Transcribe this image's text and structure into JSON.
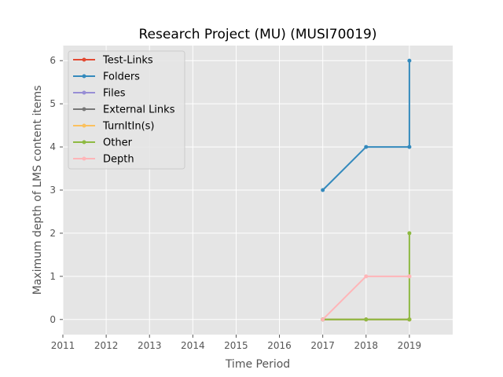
{
  "chart_data": {
    "type": "line",
    "title": "Research Project (MU) (MUSI70019)",
    "xlabel": "Time Period",
    "ylabel": "Maximum depth of LMS content items",
    "xlim": [
      2011,
      2020
    ],
    "ylim": [
      -0.35,
      6.35
    ],
    "xticks": [
      "2011",
      "2012",
      "2013",
      "2014",
      "2015",
      "2016",
      "2017",
      "2018",
      "2019"
    ],
    "yticks": [
      "0",
      "1",
      "2",
      "3",
      "4",
      "5",
      "6"
    ],
    "grid": true,
    "legend_position": "upper-left",
    "series": [
      {
        "name": "Test-Links",
        "color": "#e24a33",
        "x": [
          2017,
          2018,
          2019,
          2019
        ],
        "y": [
          0,
          0,
          0,
          0
        ]
      },
      {
        "name": "Folders",
        "color": "#348abd",
        "x": [
          2017,
          2018,
          2019,
          2019
        ],
        "y": [
          3,
          4,
          4,
          6
        ]
      },
      {
        "name": "Files",
        "color": "#988ed5",
        "x": [
          2017,
          2018,
          2019,
          2019
        ],
        "y": [
          0,
          0,
          0,
          0
        ]
      },
      {
        "name": "External Links",
        "color": "#777777",
        "x": [
          2017,
          2018,
          2019,
          2019
        ],
        "y": [
          0,
          0,
          0,
          0
        ]
      },
      {
        "name": "TurnItIn(s)",
        "color": "#fbc15e",
        "x": [
          2017,
          2018,
          2019,
          2019
        ],
        "y": [
          0,
          0,
          0,
          0
        ]
      },
      {
        "name": "Other",
        "color": "#8eba42",
        "x": [
          2017,
          2018,
          2019,
          2019
        ],
        "y": [
          0,
          0,
          0,
          2
        ]
      },
      {
        "name": "Depth",
        "color": "#ffb5b8",
        "x": [
          2017,
          2018,
          2019,
          2019
        ],
        "y": [
          0,
          1,
          1,
          1
        ]
      }
    ]
  }
}
